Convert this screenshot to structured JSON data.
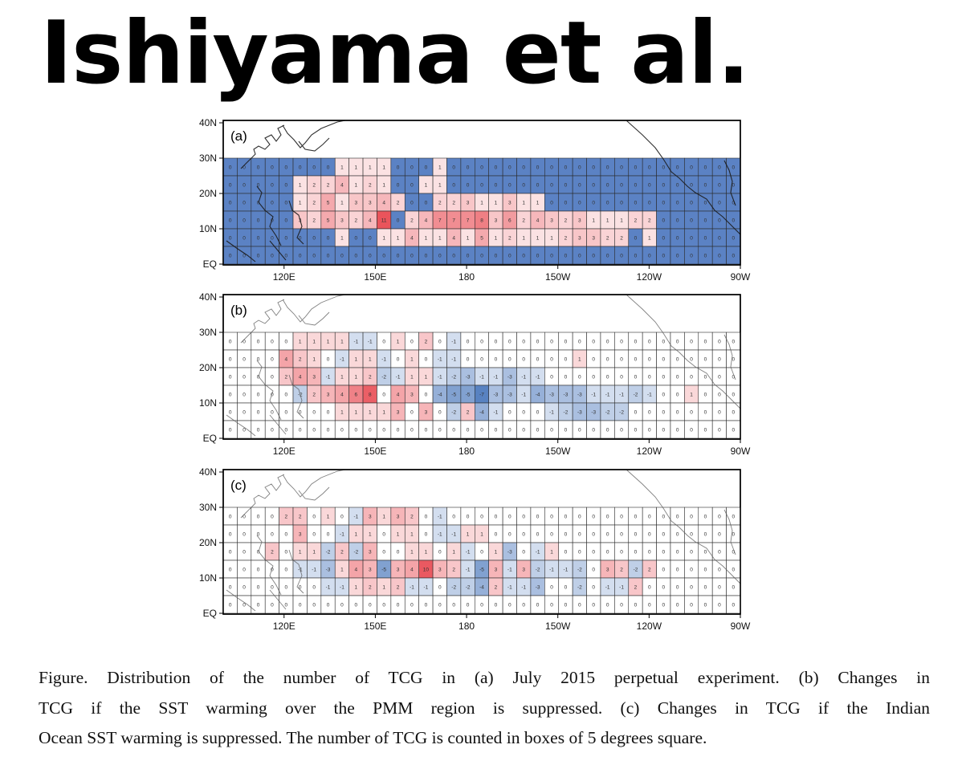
{
  "heading": "Ishiyama et al.",
  "map_axes": {
    "lat_ticks": [
      "40N",
      "30N",
      "20N",
      "10N",
      "EQ"
    ],
    "lon_ticks": [
      "120E",
      "150E",
      "180",
      "150W",
      "120W",
      "90W"
    ]
  },
  "panels": [
    {
      "label": "(a)",
      "rows": [
        [
          0,
          0,
          0,
          0,
          0,
          0,
          0,
          0,
          1,
          1,
          1,
          1,
          0,
          0,
          0,
          1,
          0,
          0,
          0,
          0,
          0,
          0,
          0,
          0,
          0,
          0,
          0,
          0,
          0,
          0,
          0,
          0,
          0,
          0,
          0,
          0,
          0
        ],
        [
          0,
          0,
          0,
          0,
          0,
          1,
          2,
          2,
          4,
          1,
          2,
          1,
          0,
          0,
          1,
          1,
          0,
          0,
          0,
          0,
          0,
          0,
          0,
          0,
          0,
          0,
          0,
          0,
          0,
          0,
          0,
          0,
          0,
          0,
          0,
          0,
          0
        ],
        [
          0,
          0,
          0,
          0,
          0,
          1,
          2,
          5,
          1,
          3,
          3,
          4,
          2,
          0,
          0,
          2,
          2,
          3,
          1,
          1,
          3,
          1,
          1,
          0,
          0,
          0,
          0,
          0,
          0,
          0,
          0,
          0,
          0,
          0,
          0,
          0,
          0
        ],
        [
          0,
          0,
          0,
          0,
          0,
          3,
          2,
          5,
          3,
          2,
          4,
          11,
          0,
          2,
          4,
          7,
          7,
          7,
          8,
          3,
          6,
          2,
          4,
          3,
          2,
          3,
          1,
          1,
          1,
          2,
          2,
          0,
          0,
          0,
          0,
          0,
          0
        ],
        [
          0,
          0,
          0,
          0,
          0,
          0,
          0,
          0,
          1,
          0,
          0,
          1,
          1,
          4,
          1,
          1,
          4,
          1,
          5,
          1,
          2,
          1,
          1,
          1,
          2,
          3,
          3,
          2,
          2,
          0,
          1,
          0,
          0,
          0,
          0,
          0,
          0
        ],
        [
          0,
          0,
          0,
          0,
          0,
          0,
          0,
          0,
          0,
          0,
          0,
          0,
          0,
          0,
          0,
          0,
          0,
          0,
          0,
          0,
          0,
          0,
          0,
          0,
          0,
          0,
          0,
          0,
          0,
          0,
          0,
          0,
          0,
          0,
          0,
          0,
          0
        ]
      ]
    },
    {
      "label": "(b)",
      "rows": [
        [
          0,
          0,
          0,
          0,
          0,
          1,
          1,
          1,
          1,
          -1,
          -1,
          0,
          1,
          0,
          2,
          0,
          -1,
          0,
          0,
          0,
          0,
          0,
          0,
          0,
          0,
          0,
          0,
          0,
          0,
          0,
          0,
          0,
          0,
          0,
          0,
          0,
          0
        ],
        [
          0,
          0,
          0,
          0,
          4,
          2,
          1,
          0,
          -1,
          1,
          1,
          -1,
          0,
          1,
          0,
          -1,
          -1,
          0,
          0,
          0,
          0,
          0,
          0,
          0,
          0,
          1,
          0,
          0,
          0,
          0,
          0,
          0,
          0,
          0,
          0,
          0,
          0
        ],
        [
          0,
          0,
          0,
          0,
          2,
          4,
          3,
          -1,
          1,
          1,
          2,
          -2,
          -1,
          1,
          1,
          -1,
          -2,
          -3,
          -1,
          -1,
          -3,
          -1,
          -1,
          0,
          0,
          0,
          0,
          0,
          0,
          0,
          0,
          0,
          0,
          0,
          0,
          0,
          0
        ],
        [
          0,
          0,
          0,
          0,
          0,
          -2,
          2,
          3,
          4,
          6,
          8,
          0,
          4,
          3,
          0,
          -4,
          -5,
          -5,
          -7,
          -3,
          -3,
          -1,
          -4,
          -3,
          -3,
          -3,
          -1,
          -1,
          -1,
          -2,
          -1,
          0,
          0,
          1,
          0,
          0,
          0
        ],
        [
          0,
          0,
          0,
          0,
          0,
          0,
          0,
          0,
          1,
          1,
          1,
          1,
          3,
          0,
          3,
          0,
          -2,
          2,
          -4,
          -1,
          0,
          0,
          0,
          -1,
          -2,
          -3,
          -3,
          -2,
          -2,
          0,
          0,
          0,
          0,
          0,
          0,
          0,
          0
        ],
        [
          0,
          0,
          0,
          0,
          0,
          0,
          0,
          0,
          0,
          0,
          0,
          0,
          0,
          0,
          0,
          0,
          0,
          0,
          0,
          0,
          0,
          0,
          0,
          0,
          0,
          0,
          0,
          0,
          0,
          0,
          0,
          0,
          0,
          0,
          0,
          0,
          0
        ]
      ]
    },
    {
      "label": "(c)",
      "rows": [
        [
          0,
          0,
          0,
          0,
          2,
          2,
          0,
          1,
          0,
          -1,
          3,
          1,
          3,
          2,
          0,
          -1,
          0,
          0,
          0,
          0,
          0,
          0,
          0,
          0,
          0,
          0,
          0,
          0,
          0,
          0,
          0,
          0,
          0,
          0,
          0,
          0,
          0
        ],
        [
          0,
          0,
          0,
          0,
          0,
          3,
          0,
          0,
          -1,
          1,
          1,
          0,
          1,
          1,
          0,
          -1,
          -1,
          1,
          1,
          0,
          0,
          0,
          0,
          0,
          0,
          0,
          0,
          0,
          0,
          0,
          0,
          0,
          0,
          0,
          0,
          0,
          0
        ],
        [
          0,
          0,
          0,
          2,
          0,
          1,
          1,
          -2,
          2,
          -2,
          3,
          0,
          0,
          1,
          1,
          0,
          1,
          -1,
          0,
          1,
          -3,
          0,
          -1,
          1,
          0,
          0,
          0,
          0,
          0,
          0,
          0,
          0,
          0,
          0,
          0,
          0,
          0
        ],
        [
          0,
          0,
          0,
          0,
          0,
          -1,
          -1,
          -3,
          1,
          4,
          3,
          -5,
          3,
          4,
          10,
          3,
          2,
          -1,
          -5,
          3,
          -1,
          3,
          -2,
          -1,
          -1,
          -2,
          0,
          3,
          2,
          -2,
          2,
          0,
          0,
          0,
          0,
          0,
          0
        ],
        [
          0,
          0,
          0,
          0,
          0,
          0,
          0,
          -1,
          -1,
          1,
          2,
          1,
          2,
          -1,
          -1,
          0,
          -2,
          -2,
          -4,
          2,
          -1,
          -1,
          -3,
          0,
          0,
          -2,
          0,
          -1,
          -1,
          2,
          0,
          0,
          0,
          0,
          0,
          0,
          0
        ],
        [
          0,
          0,
          0,
          0,
          0,
          0,
          0,
          0,
          0,
          0,
          0,
          0,
          0,
          0,
          0,
          0,
          0,
          0,
          0,
          0,
          0,
          0,
          0,
          0,
          0,
          0,
          0,
          0,
          0,
          0,
          0,
          0,
          0,
          0,
          0,
          0,
          0
        ]
      ]
    }
  ],
  "colors": {
    "positive": "#e8474f",
    "negative": "#3f6fb8",
    "panel_a_zero": "#5b82c4"
  },
  "caption": {
    "line1": "Figure. Distribution of the number of TCG in (a) July 2015 perpetual experiment. (b) Changes in",
    "line2": "TCG if the SST warming over the PMM region is suppressed. (c) Changes in TCG if the Indian",
    "line3": "Ocean SST warming is suppressed. The number of TCG is counted in boxes of 5 degrees square."
  }
}
